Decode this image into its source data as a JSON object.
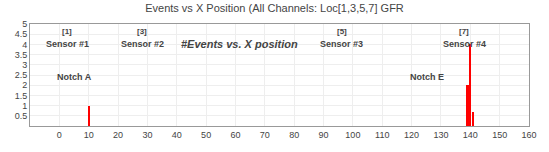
{
  "chart_data": {
    "type": "bar",
    "title": "Events vs X Position (All Channels: Loc[1,3,5,7] GFR",
    "x": [
      10,
      139,
      140,
      141
    ],
    "values": [
      1,
      2,
      4,
      0.7
    ],
    "color": "#ff0000",
    "xlim": [
      -10,
      160
    ],
    "xticks": [
      0,
      10,
      20,
      30,
      40,
      50,
      60,
      70,
      80,
      90,
      100,
      110,
      120,
      130,
      140,
      150,
      160
    ],
    "ylim": [
      0,
      5
    ],
    "yticks": [
      0.5,
      1,
      1.5,
      2,
      2.5,
      3,
      3.5,
      4,
      4.5,
      5
    ],
    "grid": true,
    "annotations": [
      "Sensor #1",
      "Sensor #2",
      "Sensor #3",
      "Sensor #4",
      "[1]",
      "[3]",
      "[5]",
      "[7]",
      "Notch A",
      "Notch E",
      "#Events vs. X position"
    ]
  }
}
